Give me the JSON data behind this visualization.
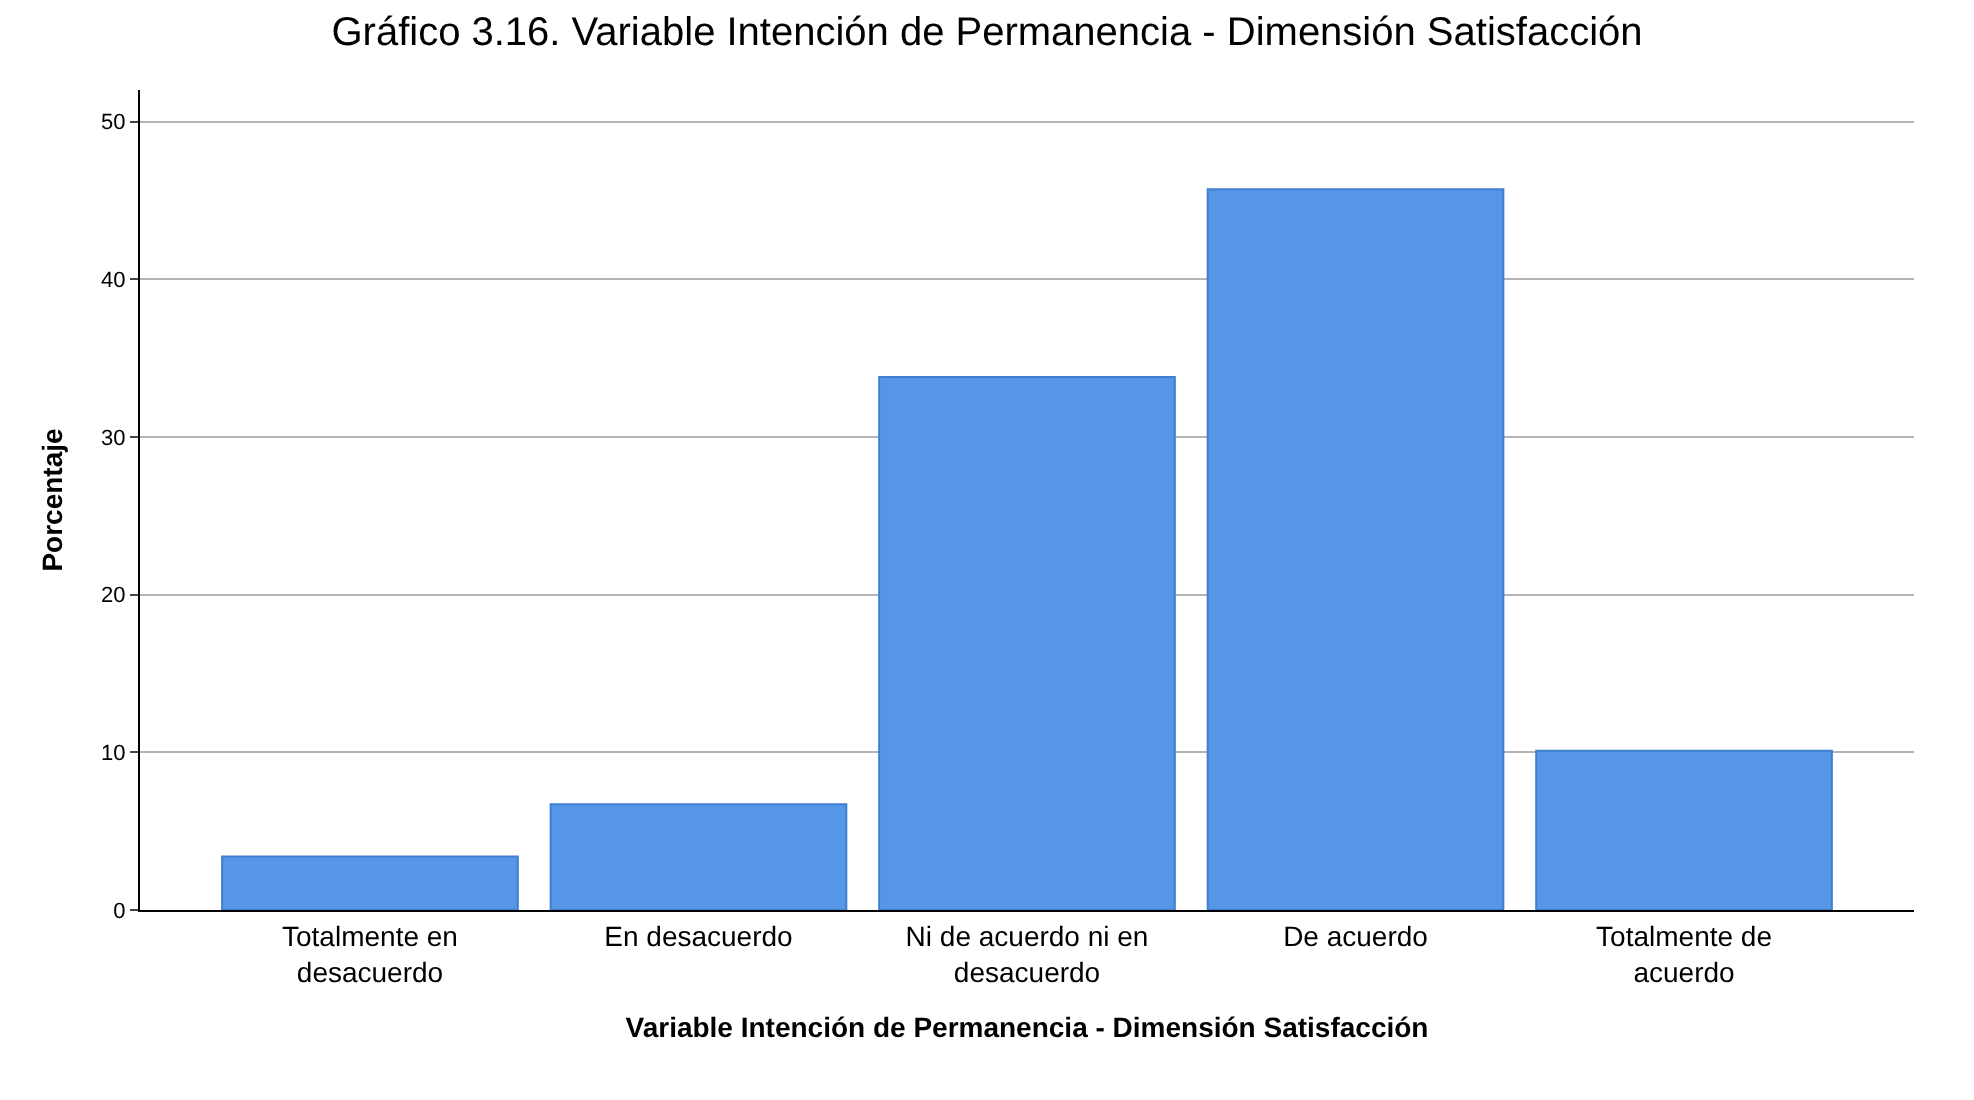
{
  "chart_data": {
    "type": "bar",
    "title": "Gráfico 3.16. Variable Intención de Permanencia - Dimensión Satisfacción",
    "xlabel": "Variable Intención de Permanencia - Dimensión Satisfacción",
    "ylabel": "Porcentaje",
    "categories": [
      "Totalmente en desacuerdo",
      "En desacuerdo",
      "Ni de acuerdo ni en desacuerdo",
      "De acuerdo",
      "Totalmente de acuerdo"
    ],
    "values": [
      3.4,
      6.7,
      33.8,
      45.7,
      10.1
    ],
    "color": "#5596e6",
    "ylim": [
      0,
      52
    ],
    "yticks": [
      0,
      10,
      20,
      30,
      40,
      50
    ],
    "grid": "y"
  }
}
